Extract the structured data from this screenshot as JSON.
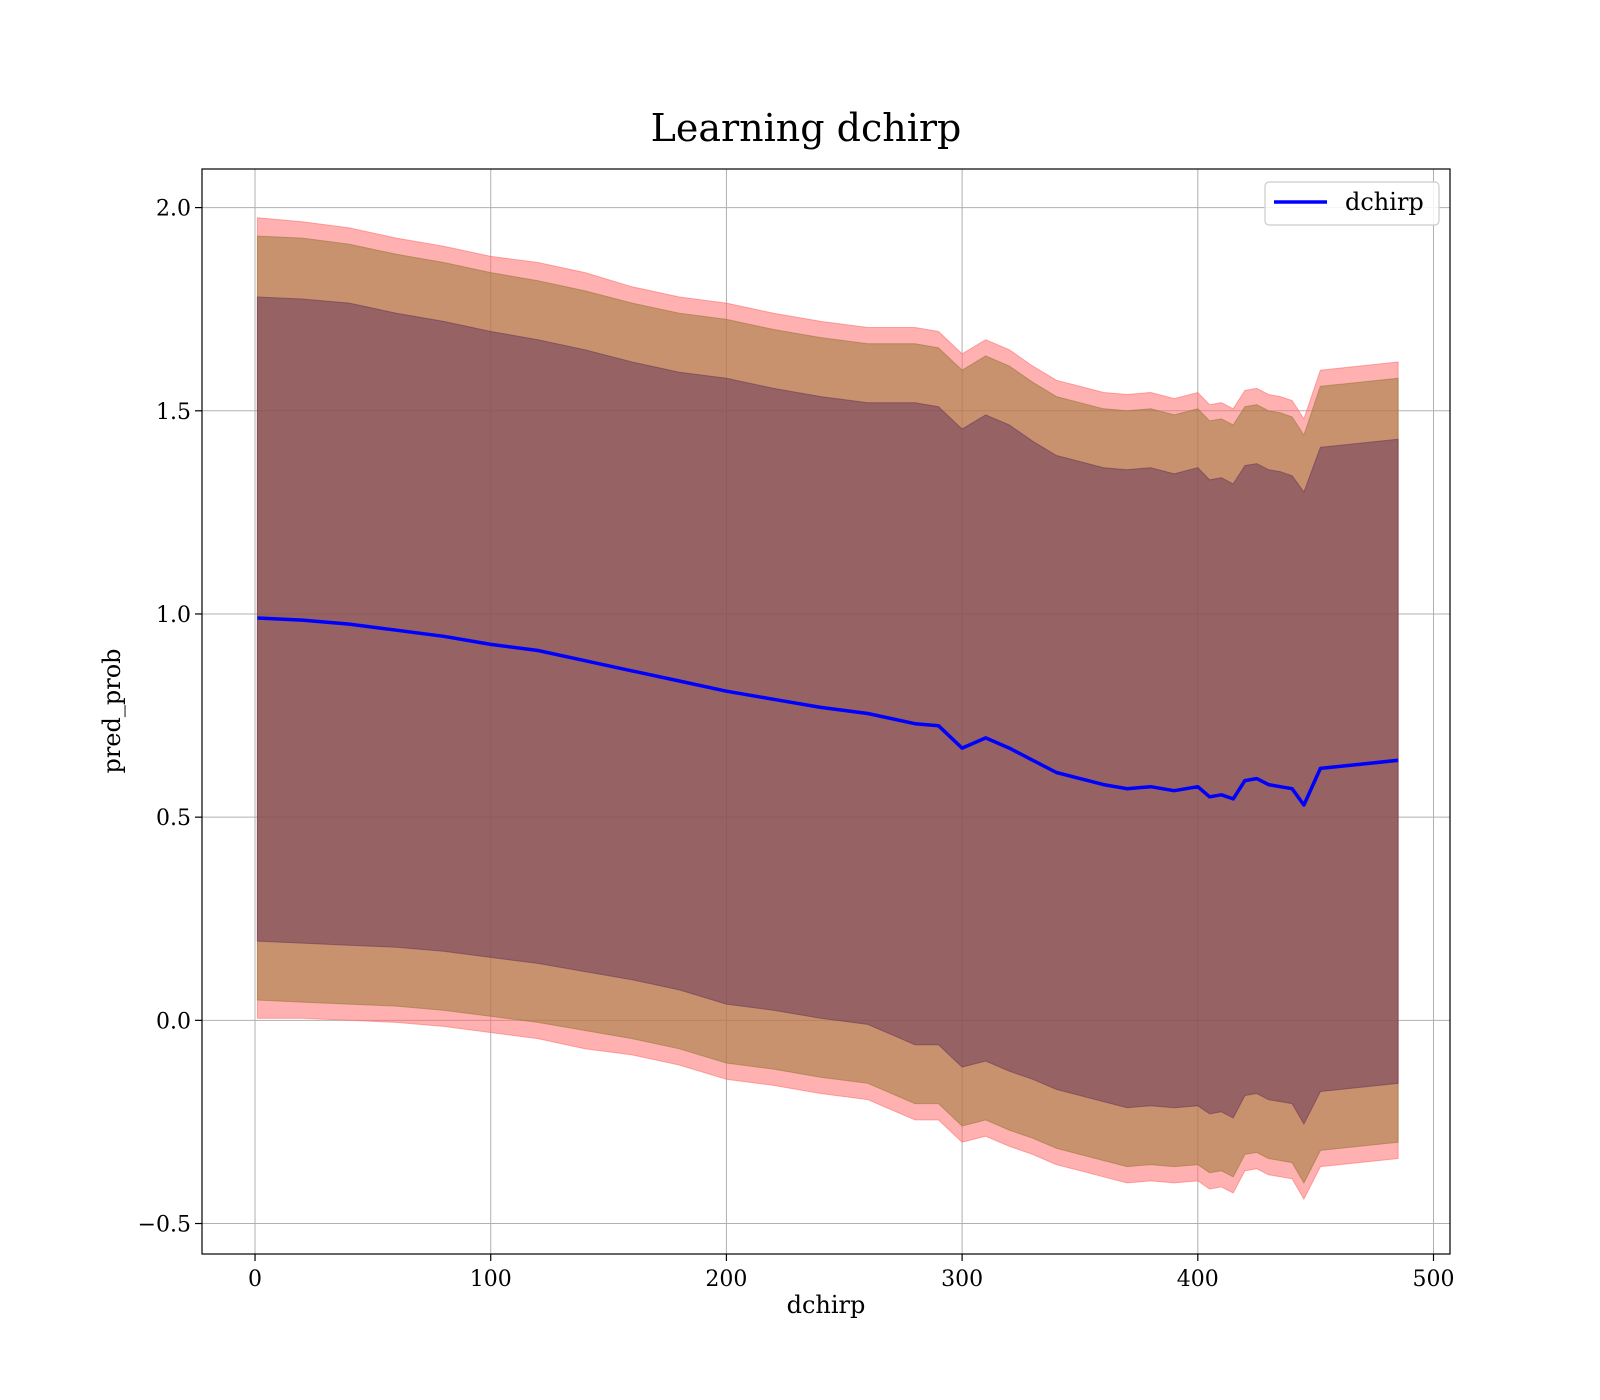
{
  "chart_data": {
    "type": "line",
    "title": "Learning dchirp",
    "xlabel": "dchirp",
    "ylabel": "pred_prob",
    "xlim": [
      -22.5,
      507
    ],
    "ylim": [
      -0.575,
      2.095
    ],
    "xticks": [
      0,
      100,
      200,
      300,
      400,
      500
    ],
    "yticks": [
      -0.5,
      0.0,
      0.5,
      1.0,
      1.5,
      2.0
    ],
    "xtick_labels": [
      "0",
      "100",
      "200",
      "300",
      "400",
      "500"
    ],
    "ytick_labels": [
      "−0.5",
      "0.0",
      "0.5",
      "1.0",
      "1.5",
      "2.0"
    ],
    "grid": true,
    "legend": {
      "placement": "top-right",
      "entries": [
        "dchirp"
      ]
    },
    "series": [
      {
        "name": "dchirp",
        "color": "#0000ff",
        "x": [
          1,
          20,
          40,
          60,
          80,
          100,
          120,
          140,
          160,
          180,
          200,
          220,
          240,
          260,
          280,
          290,
          300,
          310,
          320,
          330,
          340,
          350,
          360,
          370,
          380,
          390,
          400,
          405,
          410,
          415,
          420,
          425,
          430,
          435,
          440,
          445,
          452,
          485
        ],
        "y": [
          0.99,
          0.985,
          0.975,
          0.96,
          0.945,
          0.925,
          0.91,
          0.885,
          0.86,
          0.835,
          0.81,
          0.79,
          0.77,
          0.755,
          0.73,
          0.725,
          0.67,
          0.695,
          0.67,
          0.64,
          0.61,
          0.595,
          0.58,
          0.57,
          0.575,
          0.565,
          0.575,
          0.55,
          0.555,
          0.545,
          0.59,
          0.595,
          0.58,
          0.575,
          0.57,
          0.53,
          0.62,
          0.64
        ],
        "bands": [
          {
            "color": "#ff6f6f",
            "upper": [
              1.975,
              1.965,
              1.95,
              1.925,
              1.905,
              1.88,
              1.865,
              1.84,
              1.805,
              1.78,
              1.765,
              1.74,
              1.72,
              1.705,
              1.705,
              1.695,
              1.64,
              1.675,
              1.65,
              1.61,
              1.575,
              1.56,
              1.545,
              1.54,
              1.545,
              1.53,
              1.545,
              1.515,
              1.52,
              1.505,
              1.55,
              1.555,
              1.54,
              1.535,
              1.525,
              1.48,
              1.6,
              1.62
            ],
            "lower": [
              0.005,
              0.005,
              0.0,
              -0.005,
              -0.015,
              -0.03,
              -0.045,
              -0.07,
              -0.085,
              -0.11,
              -0.145,
              -0.16,
              -0.18,
              -0.195,
              -0.245,
              -0.245,
              -0.3,
              -0.285,
              -0.31,
              -0.33,
              -0.355,
              -0.37,
              -0.385,
              -0.4,
              -0.395,
              -0.4,
              -0.395,
              -0.415,
              -0.41,
              -0.425,
              -0.37,
              -0.365,
              -0.38,
              -0.385,
              -0.39,
              -0.44,
              -0.36,
              -0.34
            ]
          },
          {
            "color": "#9a7a3a",
            "upper": [
              1.93,
              1.925,
              1.91,
              1.885,
              1.865,
              1.84,
              1.82,
              1.795,
              1.765,
              1.74,
              1.725,
              1.7,
              1.68,
              1.665,
              1.665,
              1.655,
              1.6,
              1.635,
              1.61,
              1.57,
              1.535,
              1.52,
              1.505,
              1.5,
              1.505,
              1.49,
              1.505,
              1.475,
              1.48,
              1.465,
              1.51,
              1.515,
              1.5,
              1.495,
              1.485,
              1.44,
              1.56,
              1.58
            ],
            "lower": [
              0.05,
              0.045,
              0.04,
              0.035,
              0.025,
              0.01,
              -0.005,
              -0.025,
              -0.045,
              -0.07,
              -0.105,
              -0.12,
              -0.14,
              -0.155,
              -0.205,
              -0.205,
              -0.26,
              -0.245,
              -0.27,
              -0.29,
              -0.315,
              -0.33,
              -0.345,
              -0.36,
              -0.355,
              -0.36,
              -0.355,
              -0.375,
              -0.37,
              -0.385,
              -0.33,
              -0.325,
              -0.34,
              -0.345,
              -0.35,
              -0.4,
              -0.32,
              -0.3
            ]
          },
          {
            "color": "#6e3a5a",
            "upper": [
              1.78,
              1.775,
              1.765,
              1.74,
              1.72,
              1.695,
              1.675,
              1.65,
              1.62,
              1.595,
              1.58,
              1.555,
              1.535,
              1.52,
              1.52,
              1.51,
              1.455,
              1.49,
              1.465,
              1.425,
              1.39,
              1.375,
              1.36,
              1.355,
              1.36,
              1.345,
              1.36,
              1.33,
              1.335,
              1.32,
              1.365,
              1.37,
              1.355,
              1.35,
              1.34,
              1.3,
              1.41,
              1.43
            ],
            "lower": [
              0.195,
              0.19,
              0.185,
              0.18,
              0.17,
              0.155,
              0.14,
              0.12,
              0.1,
              0.075,
              0.04,
              0.025,
              0.005,
              -0.01,
              -0.06,
              -0.06,
              -0.115,
              -0.1,
              -0.125,
              -0.145,
              -0.17,
              -0.185,
              -0.2,
              -0.215,
              -0.21,
              -0.215,
              -0.21,
              -0.23,
              -0.225,
              -0.24,
              -0.185,
              -0.18,
              -0.195,
              -0.2,
              -0.205,
              -0.255,
              -0.175,
              -0.155
            ]
          }
        ]
      }
    ]
  }
}
